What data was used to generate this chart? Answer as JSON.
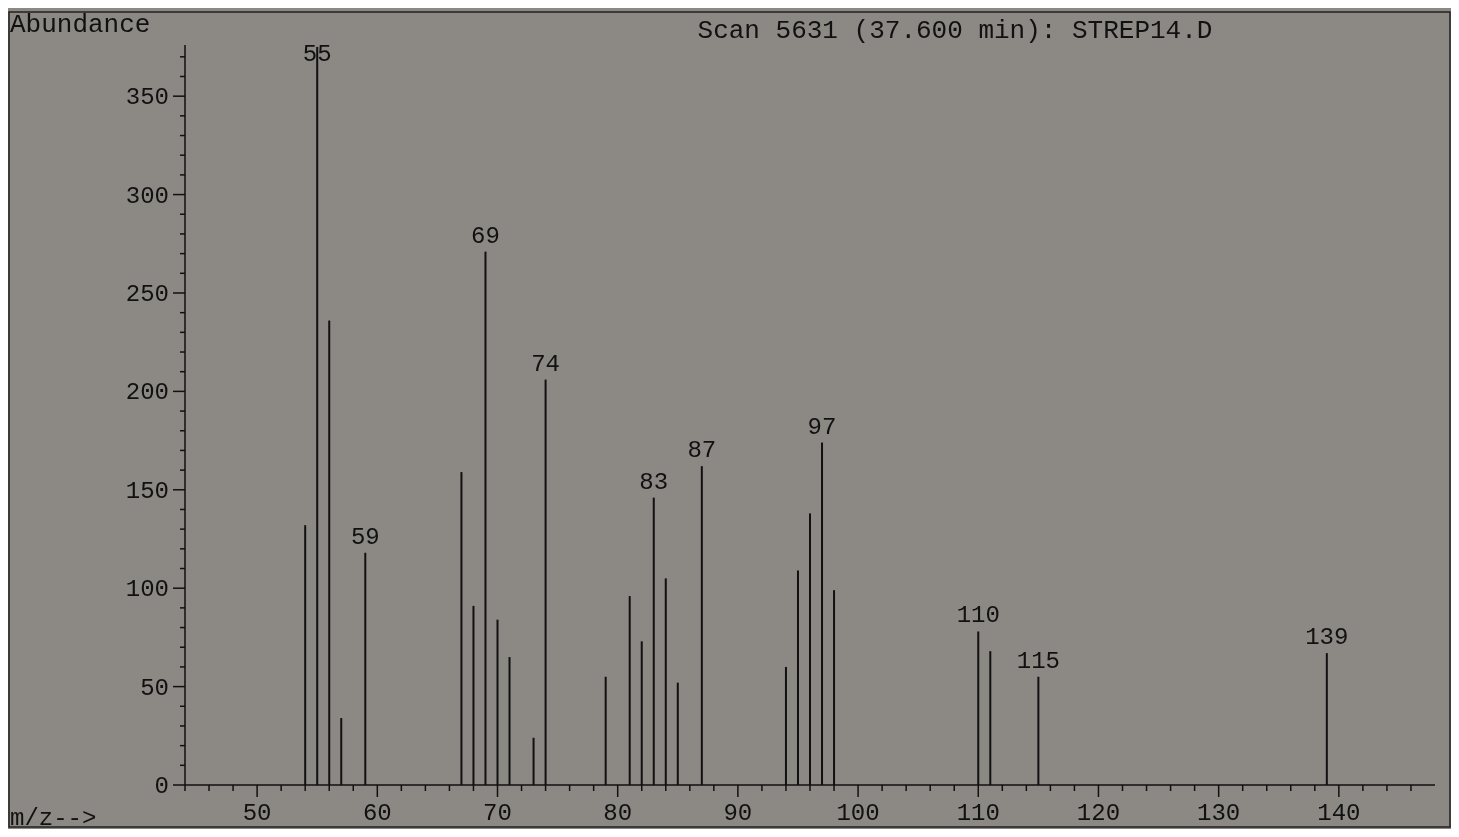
{
  "chart_data": {
    "type": "bar",
    "title": "Scan 5631 (37.600 min): STREP14.D",
    "xlabel": "m/z-->",
    "ylabel": "Abundance",
    "x": [
      54,
      55,
      56,
      57,
      59,
      67,
      68,
      69,
      70,
      71,
      73,
      74,
      79,
      81,
      82,
      83,
      84,
      85,
      87,
      94,
      95,
      96,
      97,
      98,
      110,
      111,
      115,
      139
    ],
    "values": [
      132,
      375,
      236,
      34,
      118,
      159,
      91,
      271,
      84,
      65,
      24,
      206,
      55,
      96,
      73,
      146,
      105,
      52,
      162,
      60,
      109,
      138,
      174,
      99,
      78,
      68,
      55,
      67
    ],
    "color": "#111111",
    "xlim": [
      44,
      148
    ],
    "ylim": [
      0,
      376
    ],
    "xticks": [
      {
        "value": 44,
        "label": null
      },
      {
        "value": 46,
        "label": null
      },
      {
        "value": 48,
        "label": null
      },
      50,
      {
        "value": 52,
        "label": null
      },
      {
        "value": 54,
        "label": null
      },
      {
        "value": 56,
        "label": null
      },
      {
        "value": 58,
        "label": null
      },
      60,
      {
        "value": 62,
        "label": null
      },
      {
        "value": 64,
        "label": null
      },
      {
        "value": 66,
        "label": null
      },
      {
        "value": 68,
        "label": null
      },
      70,
      {
        "value": 72,
        "label": null
      },
      {
        "value": 74,
        "label": null
      },
      {
        "value": 76,
        "label": null
      },
      {
        "value": 78,
        "label": null
      },
      80,
      {
        "value": 82,
        "label": null
      },
      {
        "value": 84,
        "label": null
      },
      {
        "value": 86,
        "label": null
      },
      {
        "value": 88,
        "label": null
      },
      90,
      {
        "value": 92,
        "label": null
      },
      {
        "value": 94,
        "label": null
      },
      {
        "value": 96,
        "label": null
      },
      {
        "value": 98,
        "label": null
      },
      100,
      {
        "value": 102,
        "label": null
      },
      {
        "value": 104,
        "label": null
      },
      {
        "value": 106,
        "label": null
      },
      {
        "value": 108,
        "label": null
      },
      110,
      {
        "value": 112,
        "label": null
      },
      {
        "value": 114,
        "label": null
      },
      {
        "value": 116,
        "label": null
      },
      {
        "value": 118,
        "label": null
      },
      120,
      {
        "value": 122,
        "label": null
      },
      {
        "value": 124,
        "label": null
      },
      {
        "value": 126,
        "label": null
      },
      {
        "value": 128,
        "label": null
      },
      130,
      {
        "value": 132,
        "label": null
      },
      {
        "value": 134,
        "label": null
      },
      {
        "value": 136,
        "label": null
      },
      {
        "value": 138,
        "label": null
      },
      140,
      {
        "value": 142,
        "label": null
      },
      {
        "value": 144,
        "label": null
      },
      {
        "value": 146,
        "label": null
      }
    ],
    "yticks": [
      0,
      {
        "value": 10,
        "label": null
      },
      {
        "value": 20,
        "label": null
      },
      {
        "value": 30,
        "label": null
      },
      {
        "value": 40,
        "label": null
      },
      50,
      {
        "value": 60,
        "label": null
      },
      {
        "value": 70,
        "label": null
      },
      {
        "value": 80,
        "label": null
      },
      {
        "value": 90,
        "label": null
      },
      100,
      {
        "value": 110,
        "label": null
      },
      {
        "value": 120,
        "label": null
      },
      {
        "value": 130,
        "label": null
      },
      {
        "value": 140,
        "label": null
      },
      150,
      {
        "value": 160,
        "label": null
      },
      {
        "value": 170,
        "label": null
      },
      {
        "value": 180,
        "label": null
      },
      {
        "value": 190,
        "label": null
      },
      200,
      {
        "value": 210,
        "label": null
      },
      {
        "value": 220,
        "label": null
      },
      {
        "value": 230,
        "label": null
      },
      {
        "value": 240,
        "label": null
      },
      250,
      {
        "value": 260,
        "label": null
      },
      {
        "value": 270,
        "label": null
      },
      {
        "value": 280,
        "label": null
      },
      {
        "value": 290,
        "label": null
      },
      300,
      {
        "value": 310,
        "label": null
      },
      {
        "value": 320,
        "label": null
      },
      {
        "value": 330,
        "label": null
      },
      {
        "value": 340,
        "label": null
      },
      350,
      {
        "value": 360,
        "label": null
      },
      {
        "value": 370,
        "label": null
      }
    ],
    "annotations": [
      {
        "text": "55",
        "x": 55,
        "y": 375
      },
      {
        "text": "59",
        "x": 59,
        "y": 118
      },
      {
        "text": "69",
        "x": 69,
        "y": 271
      },
      {
        "text": "74",
        "x": 74,
        "y": 206
      },
      {
        "text": "83",
        "x": 83,
        "y": 146
      },
      {
        "text": "87",
        "x": 87,
        "y": 162
      },
      {
        "text": "97",
        "x": 97,
        "y": 174
      },
      {
        "text": "110",
        "x": 110,
        "y": 78
      },
      {
        "text": "115",
        "x": 115,
        "y": 55
      },
      {
        "text": "139",
        "x": 139,
        "y": 67
      }
    ]
  }
}
